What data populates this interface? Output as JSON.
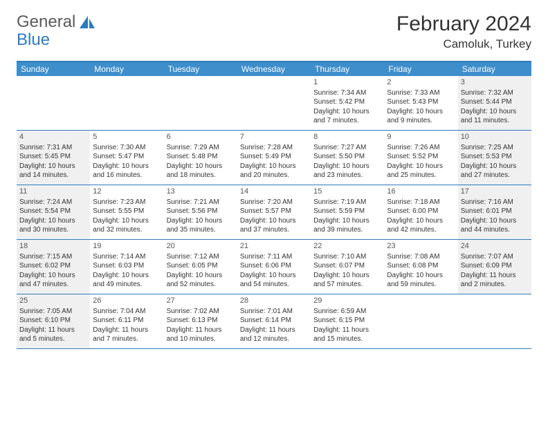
{
  "brand": {
    "part1": "General",
    "part2": "Blue"
  },
  "title": "February 2024",
  "location": "Camoluk, Turkey",
  "colors": {
    "header_bar": "#3d8ecb",
    "border": "#2d7bbd",
    "shade_bg": "#f0f0f0",
    "text": "#333333",
    "muted": "#555555"
  },
  "weekdays": [
    "Sunday",
    "Monday",
    "Tuesday",
    "Wednesday",
    "Thursday",
    "Friday",
    "Saturday"
  ],
  "weeks": [
    [
      {
        "day": "",
        "sunrise": "",
        "sunset": "",
        "daylight": "",
        "shade": false,
        "empty": true
      },
      {
        "day": "",
        "sunrise": "",
        "sunset": "",
        "daylight": "",
        "shade": false,
        "empty": true
      },
      {
        "day": "",
        "sunrise": "",
        "sunset": "",
        "daylight": "",
        "shade": false,
        "empty": true
      },
      {
        "day": "",
        "sunrise": "",
        "sunset": "",
        "daylight": "",
        "shade": false,
        "empty": true
      },
      {
        "day": "1",
        "sunrise": "Sunrise: 7:34 AM",
        "sunset": "Sunset: 5:42 PM",
        "daylight": "Daylight: 10 hours and 7 minutes.",
        "shade": false
      },
      {
        "day": "2",
        "sunrise": "Sunrise: 7:33 AM",
        "sunset": "Sunset: 5:43 PM",
        "daylight": "Daylight: 10 hours and 9 minutes.",
        "shade": false
      },
      {
        "day": "3",
        "sunrise": "Sunrise: 7:32 AM",
        "sunset": "Sunset: 5:44 PM",
        "daylight": "Daylight: 10 hours and 11 minutes.",
        "shade": true
      }
    ],
    [
      {
        "day": "4",
        "sunrise": "Sunrise: 7:31 AM",
        "sunset": "Sunset: 5:45 PM",
        "daylight": "Daylight: 10 hours and 14 minutes.",
        "shade": true
      },
      {
        "day": "5",
        "sunrise": "Sunrise: 7:30 AM",
        "sunset": "Sunset: 5:47 PM",
        "daylight": "Daylight: 10 hours and 16 minutes.",
        "shade": false
      },
      {
        "day": "6",
        "sunrise": "Sunrise: 7:29 AM",
        "sunset": "Sunset: 5:48 PM",
        "daylight": "Daylight: 10 hours and 18 minutes.",
        "shade": false
      },
      {
        "day": "7",
        "sunrise": "Sunrise: 7:28 AM",
        "sunset": "Sunset: 5:49 PM",
        "daylight": "Daylight: 10 hours and 20 minutes.",
        "shade": false
      },
      {
        "day": "8",
        "sunrise": "Sunrise: 7:27 AM",
        "sunset": "Sunset: 5:50 PM",
        "daylight": "Daylight: 10 hours and 23 minutes.",
        "shade": false
      },
      {
        "day": "9",
        "sunrise": "Sunrise: 7:26 AM",
        "sunset": "Sunset: 5:52 PM",
        "daylight": "Daylight: 10 hours and 25 minutes.",
        "shade": false
      },
      {
        "day": "10",
        "sunrise": "Sunrise: 7:25 AM",
        "sunset": "Sunset: 5:53 PM",
        "daylight": "Daylight: 10 hours and 27 minutes.",
        "shade": true
      }
    ],
    [
      {
        "day": "11",
        "sunrise": "Sunrise: 7:24 AM",
        "sunset": "Sunset: 5:54 PM",
        "daylight": "Daylight: 10 hours and 30 minutes.",
        "shade": true
      },
      {
        "day": "12",
        "sunrise": "Sunrise: 7:23 AM",
        "sunset": "Sunset: 5:55 PM",
        "daylight": "Daylight: 10 hours and 32 minutes.",
        "shade": false
      },
      {
        "day": "13",
        "sunrise": "Sunrise: 7:21 AM",
        "sunset": "Sunset: 5:56 PM",
        "daylight": "Daylight: 10 hours and 35 minutes.",
        "shade": false
      },
      {
        "day": "14",
        "sunrise": "Sunrise: 7:20 AM",
        "sunset": "Sunset: 5:57 PM",
        "daylight": "Daylight: 10 hours and 37 minutes.",
        "shade": false
      },
      {
        "day": "15",
        "sunrise": "Sunrise: 7:19 AM",
        "sunset": "Sunset: 5:59 PM",
        "daylight": "Daylight: 10 hours and 39 minutes.",
        "shade": false
      },
      {
        "day": "16",
        "sunrise": "Sunrise: 7:18 AM",
        "sunset": "Sunset: 6:00 PM",
        "daylight": "Daylight: 10 hours and 42 minutes.",
        "shade": false
      },
      {
        "day": "17",
        "sunrise": "Sunrise: 7:16 AM",
        "sunset": "Sunset: 6:01 PM",
        "daylight": "Daylight: 10 hours and 44 minutes.",
        "shade": true
      }
    ],
    [
      {
        "day": "18",
        "sunrise": "Sunrise: 7:15 AM",
        "sunset": "Sunset: 6:02 PM",
        "daylight": "Daylight: 10 hours and 47 minutes.",
        "shade": true
      },
      {
        "day": "19",
        "sunrise": "Sunrise: 7:14 AM",
        "sunset": "Sunset: 6:03 PM",
        "daylight": "Daylight: 10 hours and 49 minutes.",
        "shade": false
      },
      {
        "day": "20",
        "sunrise": "Sunrise: 7:12 AM",
        "sunset": "Sunset: 6:05 PM",
        "daylight": "Daylight: 10 hours and 52 minutes.",
        "shade": false
      },
      {
        "day": "21",
        "sunrise": "Sunrise: 7:11 AM",
        "sunset": "Sunset: 6:06 PM",
        "daylight": "Daylight: 10 hours and 54 minutes.",
        "shade": false
      },
      {
        "day": "22",
        "sunrise": "Sunrise: 7:10 AM",
        "sunset": "Sunset: 6:07 PM",
        "daylight": "Daylight: 10 hours and 57 minutes.",
        "shade": false
      },
      {
        "day": "23",
        "sunrise": "Sunrise: 7:08 AM",
        "sunset": "Sunset: 6:08 PM",
        "daylight": "Daylight: 10 hours and 59 minutes.",
        "shade": false
      },
      {
        "day": "24",
        "sunrise": "Sunrise: 7:07 AM",
        "sunset": "Sunset: 6:09 PM",
        "daylight": "Daylight: 11 hours and 2 minutes.",
        "shade": true
      }
    ],
    [
      {
        "day": "25",
        "sunrise": "Sunrise: 7:05 AM",
        "sunset": "Sunset: 6:10 PM",
        "daylight": "Daylight: 11 hours and 5 minutes.",
        "shade": true
      },
      {
        "day": "26",
        "sunrise": "Sunrise: 7:04 AM",
        "sunset": "Sunset: 6:11 PM",
        "daylight": "Daylight: 11 hours and 7 minutes.",
        "shade": false
      },
      {
        "day": "27",
        "sunrise": "Sunrise: 7:02 AM",
        "sunset": "Sunset: 6:13 PM",
        "daylight": "Daylight: 11 hours and 10 minutes.",
        "shade": false
      },
      {
        "day": "28",
        "sunrise": "Sunrise: 7:01 AM",
        "sunset": "Sunset: 6:14 PM",
        "daylight": "Daylight: 11 hours and 12 minutes.",
        "shade": false
      },
      {
        "day": "29",
        "sunrise": "Sunrise: 6:59 AM",
        "sunset": "Sunset: 6:15 PM",
        "daylight": "Daylight: 11 hours and 15 minutes.",
        "shade": false
      },
      {
        "day": "",
        "sunrise": "",
        "sunset": "",
        "daylight": "",
        "shade": false,
        "empty": true
      },
      {
        "day": "",
        "sunrise": "",
        "sunset": "",
        "daylight": "",
        "shade": false,
        "empty": true
      }
    ]
  ]
}
